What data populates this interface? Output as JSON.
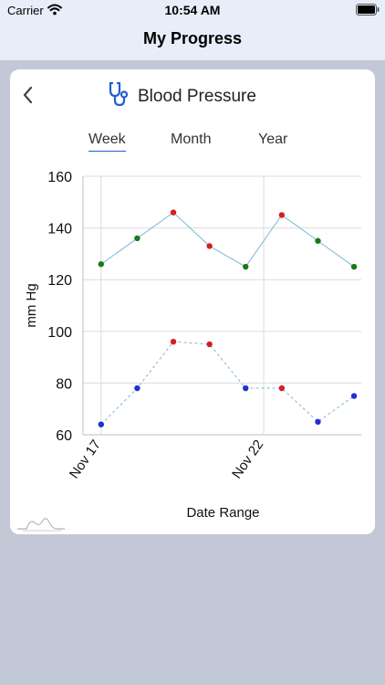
{
  "status_bar": {
    "carrier": "Carrier",
    "time": "10:54 AM"
  },
  "nav": {
    "title": "My Progress"
  },
  "card": {
    "title": "Blood Pressure",
    "icon": "stethoscope-icon",
    "back_icon": "chevron-left-icon",
    "tabs": [
      {
        "label": "Week",
        "selected": true
      },
      {
        "label": "Month",
        "selected": false
      },
      {
        "label": "Year",
        "selected": false
      }
    ]
  },
  "colors": {
    "header_bg": "#e7eefa",
    "page_bg": "#c3c8d6",
    "accent": "#1f5fcf",
    "line": "#79b6d6",
    "normal": "#1a7a1a",
    "high": "#d61f1f",
    "low": "#1f2fd6"
  },
  "chart_data": {
    "type": "line",
    "xlabel": "Date Range",
    "ylabel": "mm Hg",
    "ylim": [
      60,
      160
    ],
    "yticks": [
      "60",
      "80",
      "100",
      "120",
      "140",
      "160"
    ],
    "xtick_labels": [
      "Nov 17",
      "Nov 22"
    ],
    "xtick_positions": [
      0,
      4.5
    ],
    "xlim": [
      -0.5,
      7.2
    ],
    "grid": true,
    "series": [
      {
        "role": "systolic",
        "style": "solid",
        "points": [
          {
            "x": 0,
            "y": 126,
            "status": "normal"
          },
          {
            "x": 1,
            "y": 136,
            "status": "normal"
          },
          {
            "x": 2,
            "y": 146,
            "status": "high"
          },
          {
            "x": 3,
            "y": 133,
            "status": "high"
          },
          {
            "x": 4,
            "y": 125,
            "status": "normal"
          },
          {
            "x": 5,
            "y": 145,
            "status": "high"
          },
          {
            "x": 6,
            "y": 135,
            "status": "normal"
          },
          {
            "x": 7,
            "y": 125,
            "status": "normal"
          }
        ]
      },
      {
        "role": "diastolic",
        "style": "dashed",
        "points": [
          {
            "x": 0,
            "y": 64,
            "status": "low"
          },
          {
            "x": 1,
            "y": 78,
            "status": "low"
          },
          {
            "x": 2,
            "y": 96,
            "status": "high"
          },
          {
            "x": 3,
            "y": 95,
            "status": "high"
          },
          {
            "x": 4,
            "y": 78,
            "status": "low"
          },
          {
            "x": 5,
            "y": 78,
            "status": "high"
          },
          {
            "x": 6,
            "y": 65,
            "status": "low"
          },
          {
            "x": 7,
            "y": 75,
            "status": "low"
          }
        ]
      }
    ]
  }
}
